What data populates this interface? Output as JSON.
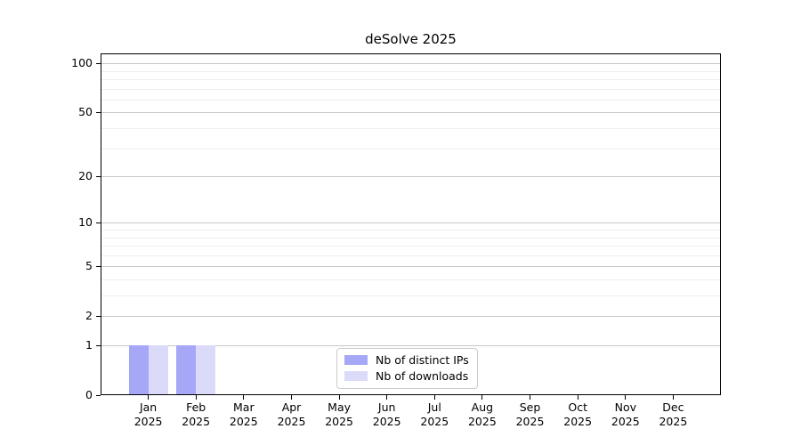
{
  "chart_data": {
    "type": "bar",
    "title": "deSolve 2025",
    "categories": [
      "Jan",
      "Feb",
      "Mar",
      "Apr",
      "May",
      "Jun",
      "Jul",
      "Aug",
      "Sep",
      "Oct",
      "Nov",
      "Dec"
    ],
    "x_tick_year": "2025",
    "series": [
      {
        "name": "Nb of distinct IPs",
        "color": "#a7a7f7",
        "values": [
          1,
          1,
          0,
          0,
          0,
          0,
          0,
          0,
          0,
          0,
          0,
          0
        ]
      },
      {
        "name": "Nb of downloads",
        "color": "#dbdbf9",
        "values": [
          1,
          1,
          0,
          0,
          0,
          0,
          0,
          0,
          0,
          0,
          0,
          0
        ]
      }
    ],
    "y_axis": {
      "scale": "log1p",
      "ticks": [
        0,
        1,
        2,
        5,
        10,
        20,
        50,
        100
      ],
      "minor_ticks": [
        3,
        4,
        6,
        7,
        8,
        9,
        30,
        40,
        60,
        70,
        80,
        90
      ],
      "max": 115
    },
    "ylim": [
      0,
      115
    ],
    "grid": "horizontal",
    "legend_position": "lower center"
  },
  "colors": {
    "grid_major": "#c8c8c8",
    "grid_minor": "#efefef",
    "axis": "#000000",
    "legend_border": "#cccccc"
  }
}
